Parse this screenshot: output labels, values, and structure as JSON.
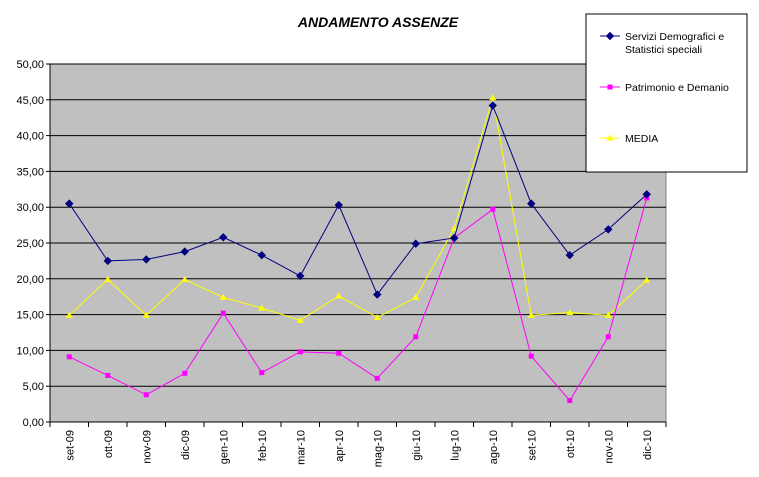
{
  "chart_data": {
    "type": "line",
    "title": "ANDAMENTO ASSENZE",
    "categories": [
      "set-09",
      "ott-09",
      "nov-09",
      "dic-09",
      "gen-10",
      "feb-10",
      "mar-10",
      "apr-10",
      "mag-10",
      "giu-10",
      "lug-10",
      "ago-10",
      "set-10",
      "ott-10",
      "nov-10",
      "dic-10"
    ],
    "series": [
      {
        "name": "Servizi Demografici e Statistici speciali",
        "name_lines": [
          "Servizi Demografici e",
          "Statistici speciali"
        ],
        "color": "#000080",
        "marker": "diamond",
        "values": [
          30.5,
          22.5,
          22.7,
          23.8,
          25.8,
          23.3,
          20.4,
          30.3,
          17.8,
          24.9,
          25.7,
          44.2,
          30.5,
          23.3,
          26.9,
          31.8
        ]
      },
      {
        "name": "Patrimonio e Demanio",
        "name_lines": [
          "Patrimonio e Demanio"
        ],
        "color": "#ff00ff",
        "marker": "square",
        "values": [
          9.1,
          6.5,
          3.8,
          6.8,
          15.2,
          6.9,
          9.8,
          9.6,
          6.1,
          11.9,
          25.7,
          29.7,
          9.2,
          3.0,
          11.9,
          31.3
        ]
      },
      {
        "name": "MEDIA",
        "name_lines": [
          "MEDIA"
        ],
        "color": "#ffff00",
        "marker": "triangle",
        "values": [
          14.9,
          19.9,
          14.9,
          19.9,
          17.4,
          15.9,
          14.2,
          17.6,
          14.6,
          17.4,
          27.0,
          45.3,
          14.9,
          15.3,
          14.9,
          19.8
        ]
      }
    ],
    "y_ticks": [
      "0,00",
      "5,00",
      "10,00",
      "15,00",
      "20,00",
      "25,00",
      "30,00",
      "35,00",
      "40,00",
      "45,00",
      "50,00"
    ],
    "ylim": [
      0,
      50
    ],
    "plot_background": "#c0c0c0",
    "grid": true,
    "legend_position": "top-right"
  }
}
